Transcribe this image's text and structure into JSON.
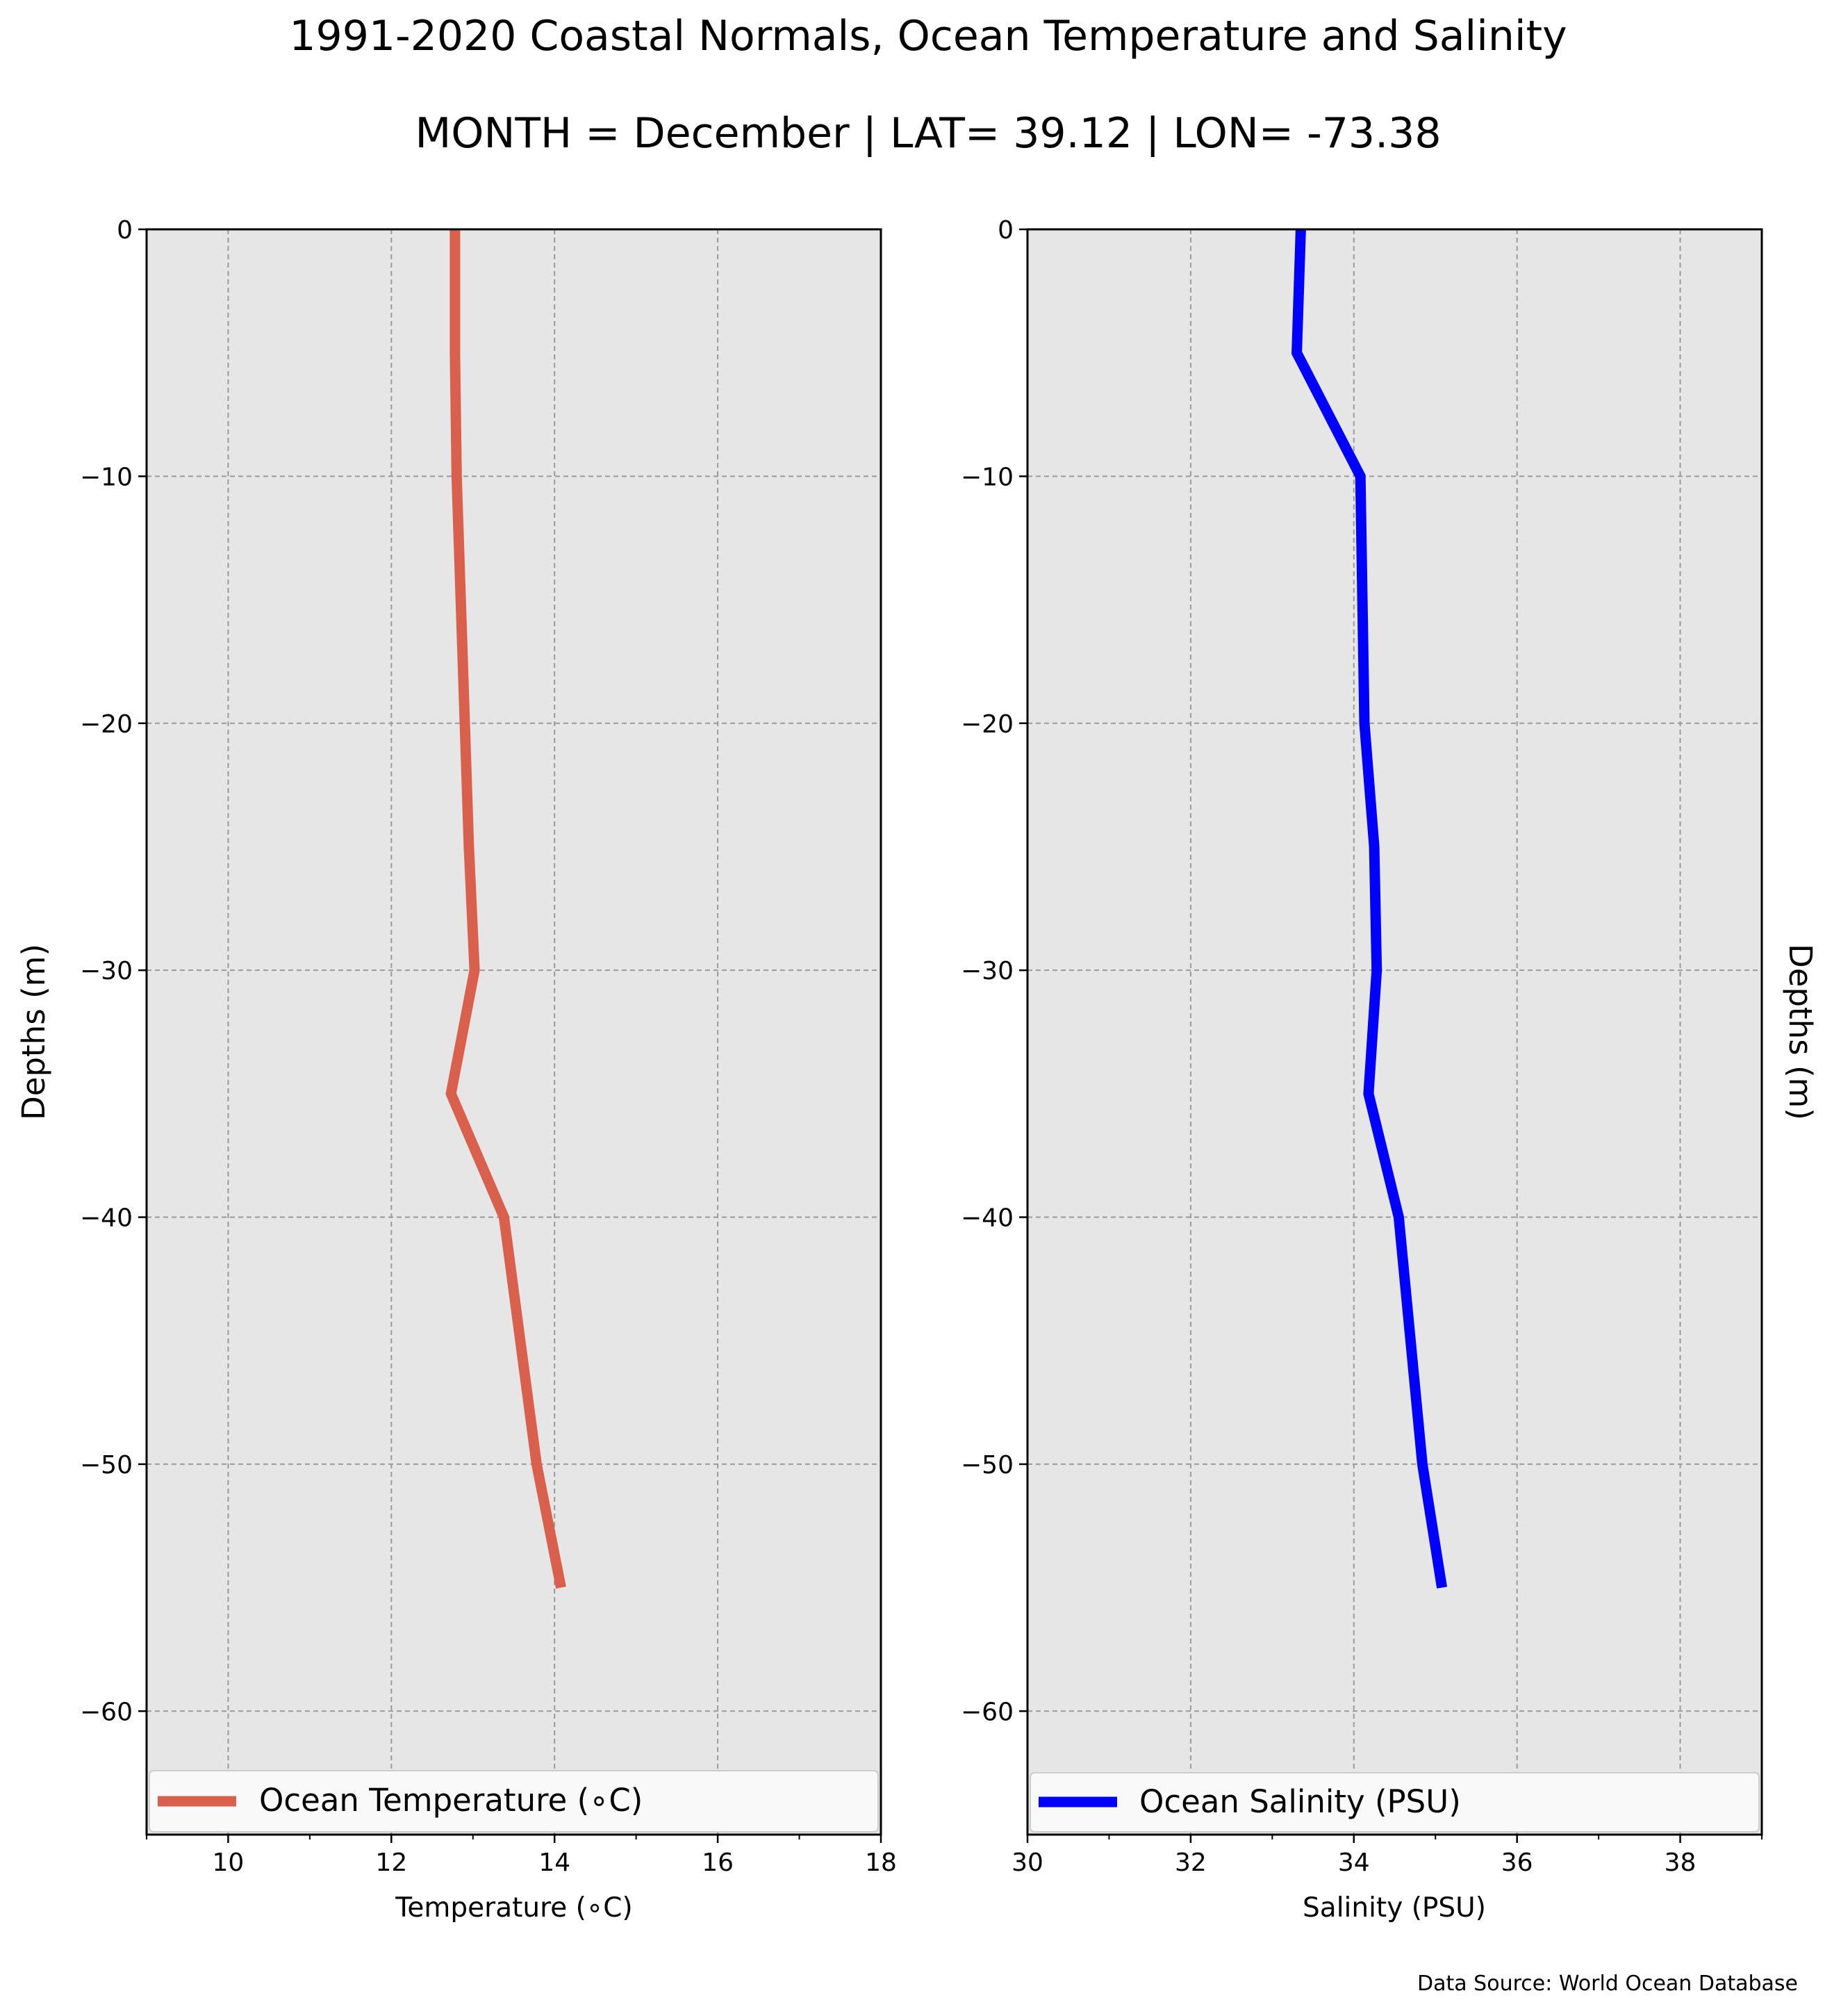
{
  "figure": {
    "title": "1991-2020 Coastal Normals, Ocean Temperature and Salinity",
    "subtitle": "MONTH = December | LAT= 39.12 | LON= -73.38",
    "footer": "Data Source: World Ocean Database"
  },
  "chart_data": [
    {
      "type": "line",
      "xlabel": "Temperature (∘C)",
      "ylabel": "Depths (m)",
      "xlim": [
        9,
        18
      ],
      "ylim": [
        -65,
        0
      ],
      "xticks": [
        10,
        12,
        14,
        16,
        18
      ],
      "xtick_labels": [
        "10",
        "12",
        "14",
        "16",
        "18"
      ],
      "yticks": [
        0,
        -10,
        -20,
        -30,
        -40,
        -50,
        -60
      ],
      "ytick_labels": [
        "0",
        "−10",
        "−20",
        "−30",
        "−40",
        "−50",
        "−60"
      ],
      "grid": true,
      "legend_position": "bottom",
      "background": "#e6e6e6",
      "series": [
        {
          "name": "Ocean Temperature (∘C)",
          "color": "#d9604c",
          "x": [
            12.78,
            12.78,
            12.8,
            12.85,
            12.95,
            13.02,
            12.73,
            13.38,
            13.78,
            14.08
          ],
          "y": [
            0,
            -5,
            -10,
            -15,
            -25,
            -30,
            -35,
            -40,
            -50,
            -55
          ]
        }
      ]
    },
    {
      "type": "line",
      "xlabel": "Salinity (PSU)",
      "ylabel": "Depths (m)",
      "xlim": [
        30,
        39
      ],
      "ylim": [
        -65,
        0
      ],
      "xticks": [
        30,
        32,
        34,
        36,
        38
      ],
      "xtick_labels": [
        "30",
        "32",
        "34",
        "36",
        "38"
      ],
      "yticks": [
        0,
        -10,
        -20,
        -30,
        -40,
        -50,
        -60
      ],
      "ytick_labels": [
        "0",
        "−10",
        "−20",
        "−30",
        "−40",
        "−50",
        "−60"
      ],
      "grid": true,
      "legend_position": "bottom",
      "background": "#e6e6e6",
      "series": [
        {
          "name": "Ocean Salinity (PSU)",
          "color": "#0000ff",
          "x": [
            33.35,
            33.3,
            34.08,
            34.13,
            34.25,
            34.28,
            34.18,
            34.55,
            34.84,
            35.08
          ],
          "y": [
            0,
            -5,
            -10,
            -20,
            -25,
            -30,
            -35,
            -40,
            -50,
            -55
          ]
        }
      ]
    }
  ]
}
